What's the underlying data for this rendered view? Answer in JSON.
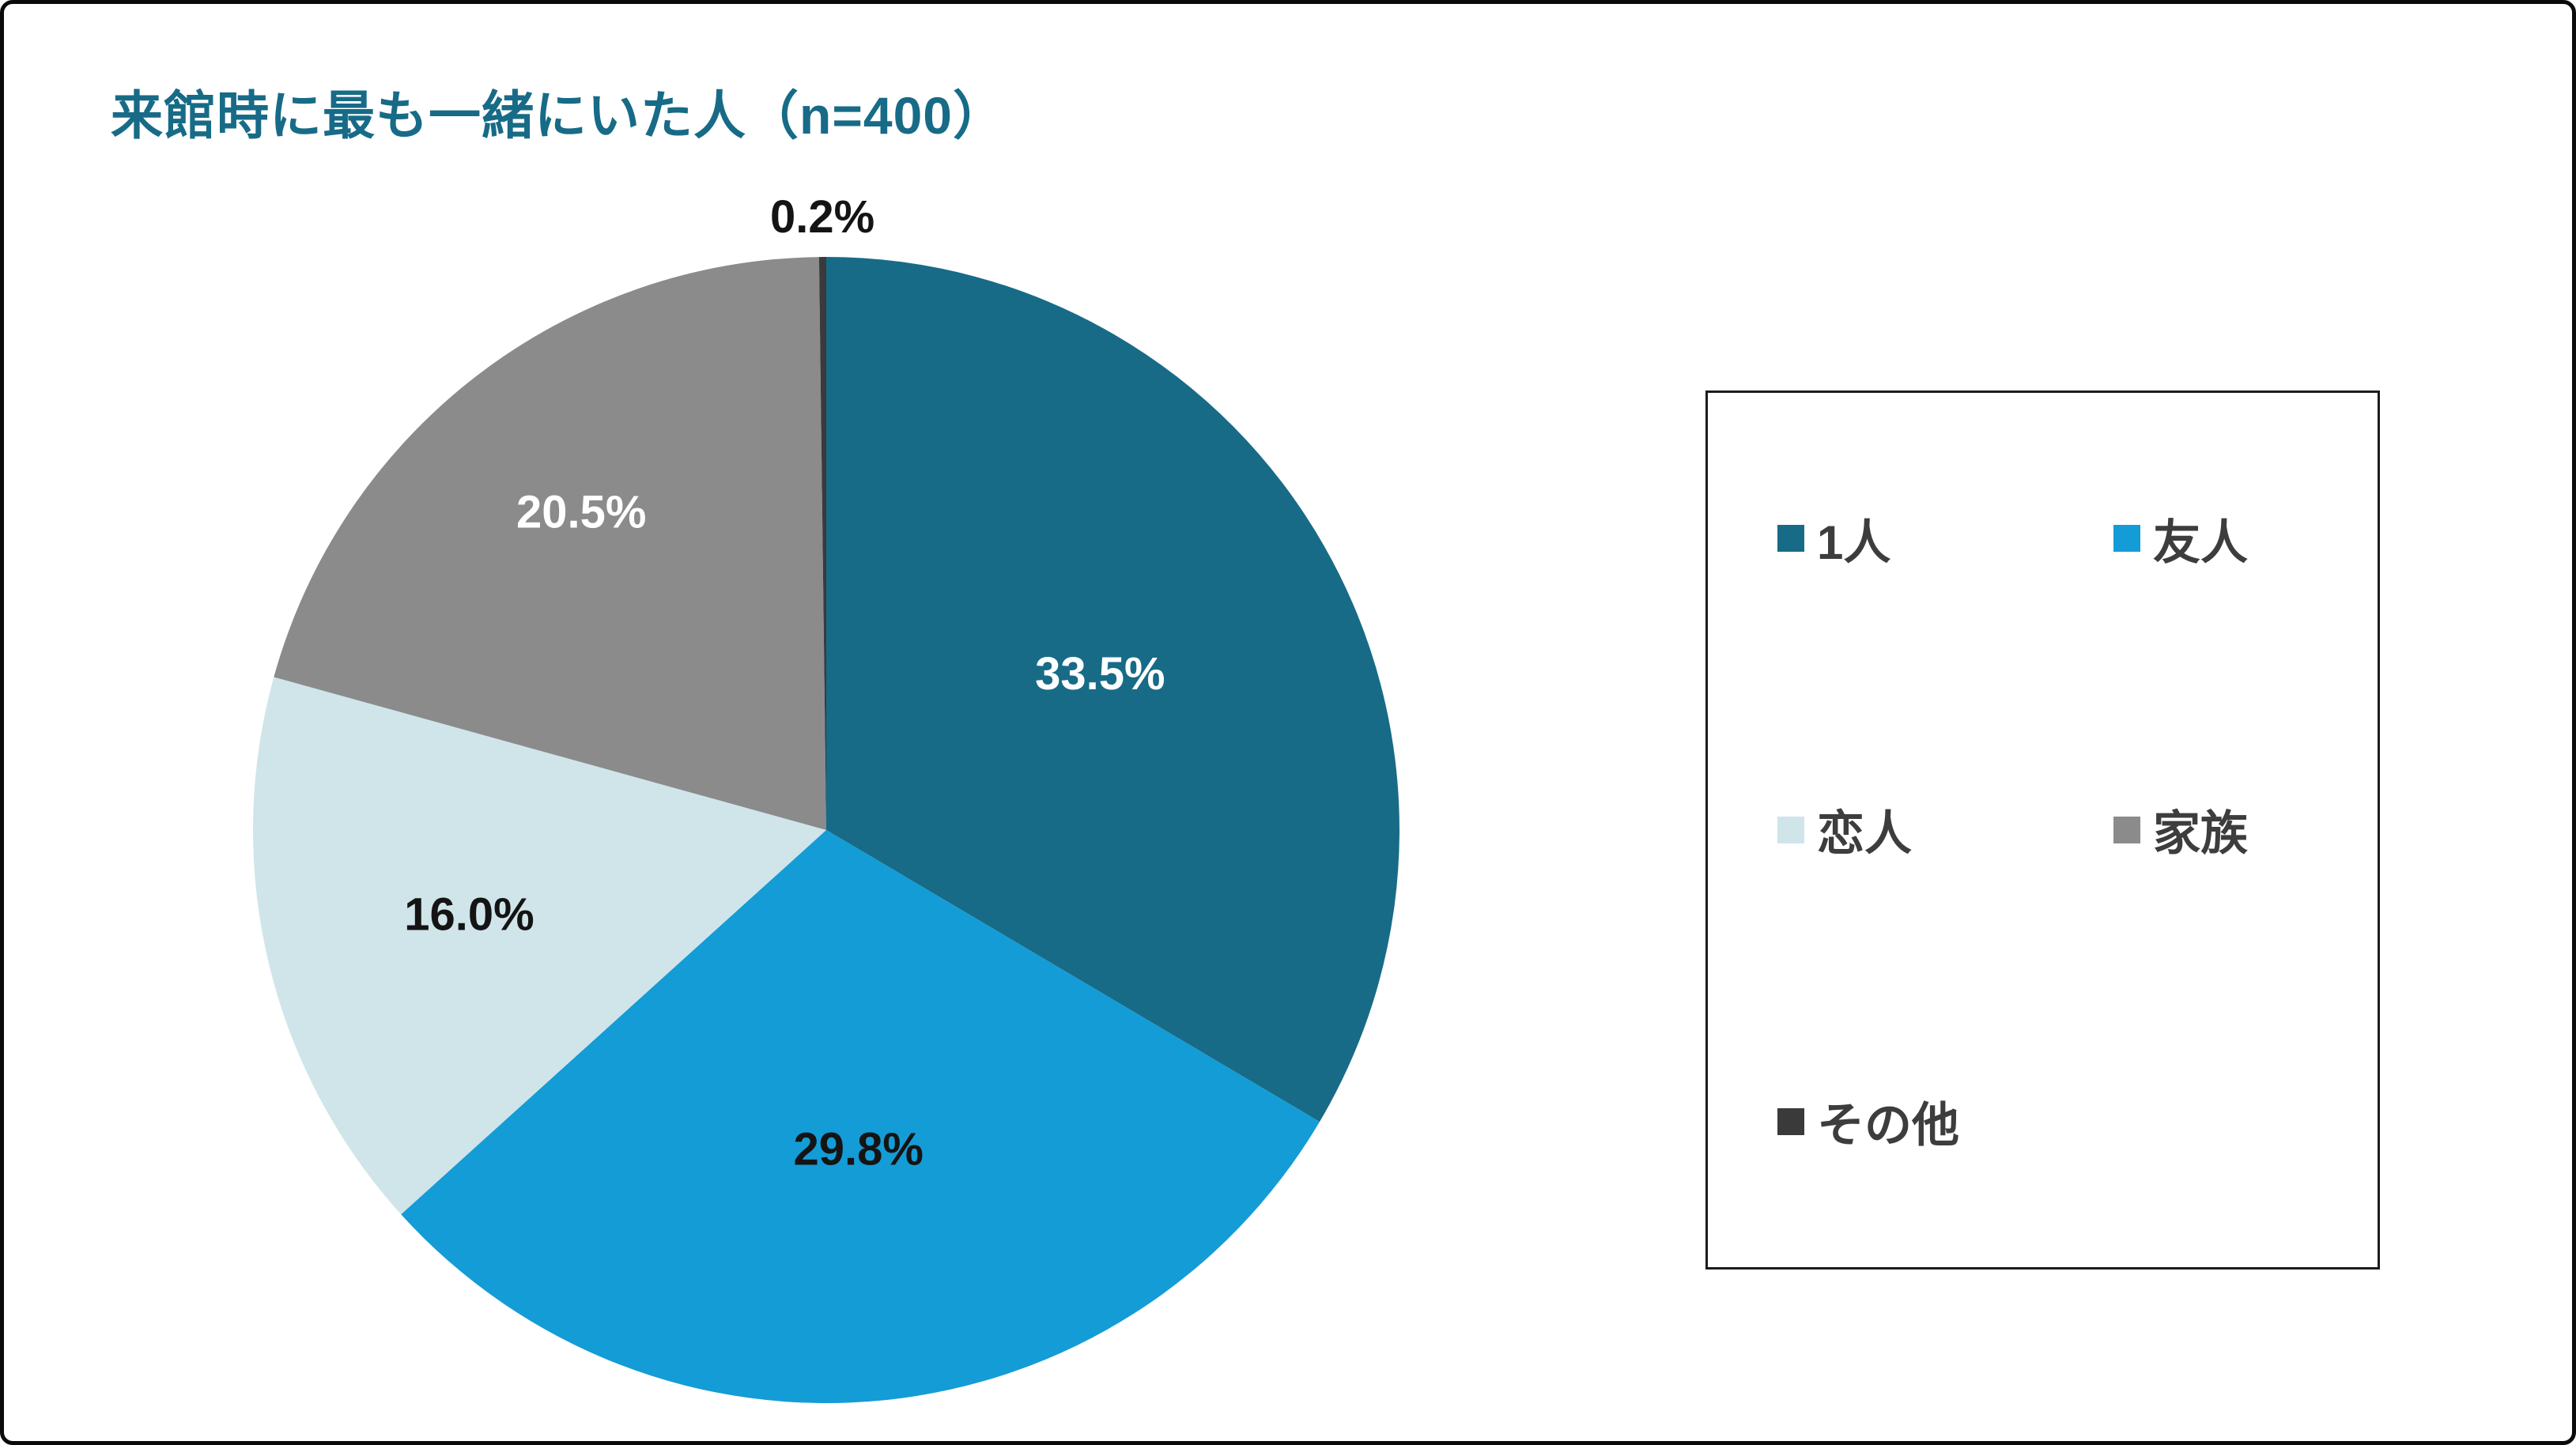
{
  "title": "来館時に最も一緒にいた人（n=400）",
  "chart_data": {
    "type": "pie",
    "title": "来館時に最も一緒にいた人（n=400）",
    "sample_size": 400,
    "direction": "clockwise",
    "start_angle_deg": 0,
    "legend_position": "right",
    "slices": [
      {
        "label": "1人",
        "value": 33.5,
        "display": "33.5%",
        "color": "#176b87",
        "label_color": "#ffffff",
        "label_pos": "inside",
        "label_r": 0.55
      },
      {
        "label": "友人",
        "value": 29.8,
        "display": "29.8%",
        "color": "#149cd6",
        "label_color": "#141414",
        "label_pos": "inside",
        "label_r": 0.56
      },
      {
        "label": "恋人",
        "value": 16.0,
        "display": "16.0%",
        "color": "#cfe5ea",
        "label_color": "#141414",
        "label_pos": "inside",
        "label_r": 0.64
      },
      {
        "label": "家族",
        "value": 20.5,
        "display": "20.5%",
        "color": "#8b8b8b",
        "label_color": "#ffffff",
        "label_pos": "inside",
        "label_r": 0.7
      },
      {
        "label": "その他",
        "value": 0.2,
        "display": "0.2%",
        "color": "#3a3a3a",
        "label_color": "#141414",
        "label_pos": "outside",
        "label_r": 1.07
      }
    ]
  }
}
